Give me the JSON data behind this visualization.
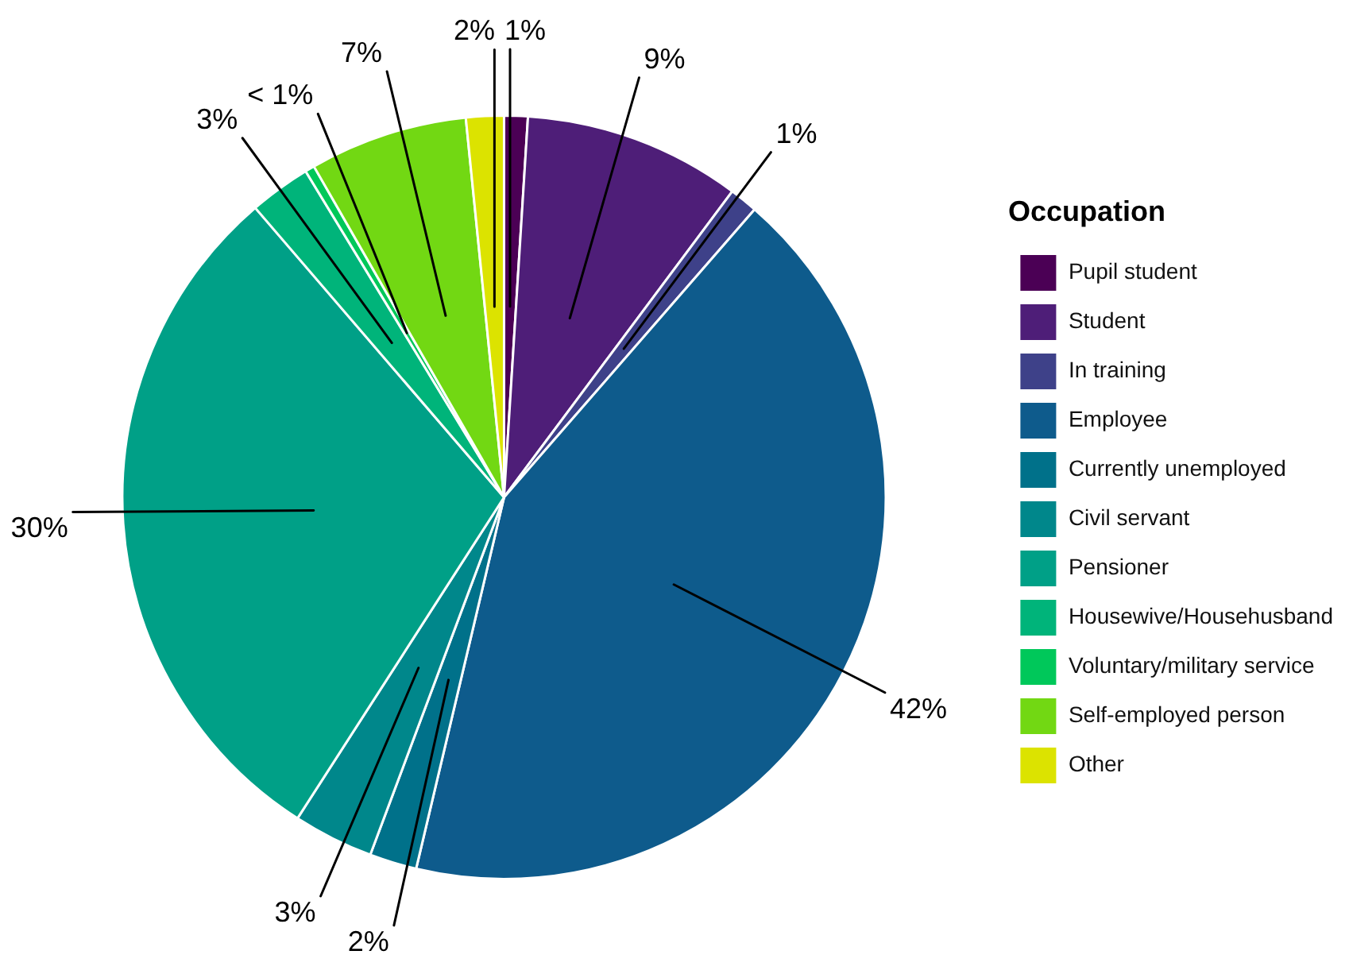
{
  "chart_data": {
    "type": "pie",
    "legend_title": "Occupation",
    "legend": "right",
    "categories": [
      "Pupil student",
      "Student",
      "In training",
      "Employee",
      "Currently unemployed",
      "Civil servant",
      "Pensioner",
      "Housewive/Househusband",
      "Voluntary/military service",
      "Self-employed person",
      "Other"
    ],
    "values": [
      1.0,
      9.2,
      1.2,
      42.3,
      2.0,
      3.4,
      29.6,
      2.6,
      0.4,
      6.7,
      1.6
    ],
    "colors": [
      "#4b0055",
      "#4e1e78",
      "#3e4189",
      "#0e5b8c",
      "#00718a",
      "#00878b",
      "#00a087",
      "#00b47a",
      "#00c85a",
      "#72d813",
      "#dce300"
    ],
    "value_labels": [
      "1%",
      "9%",
      "1%",
      "42%",
      "2%",
      "3%",
      "30%",
      "3%",
      "< 1%",
      "7%",
      "2%"
    ]
  }
}
